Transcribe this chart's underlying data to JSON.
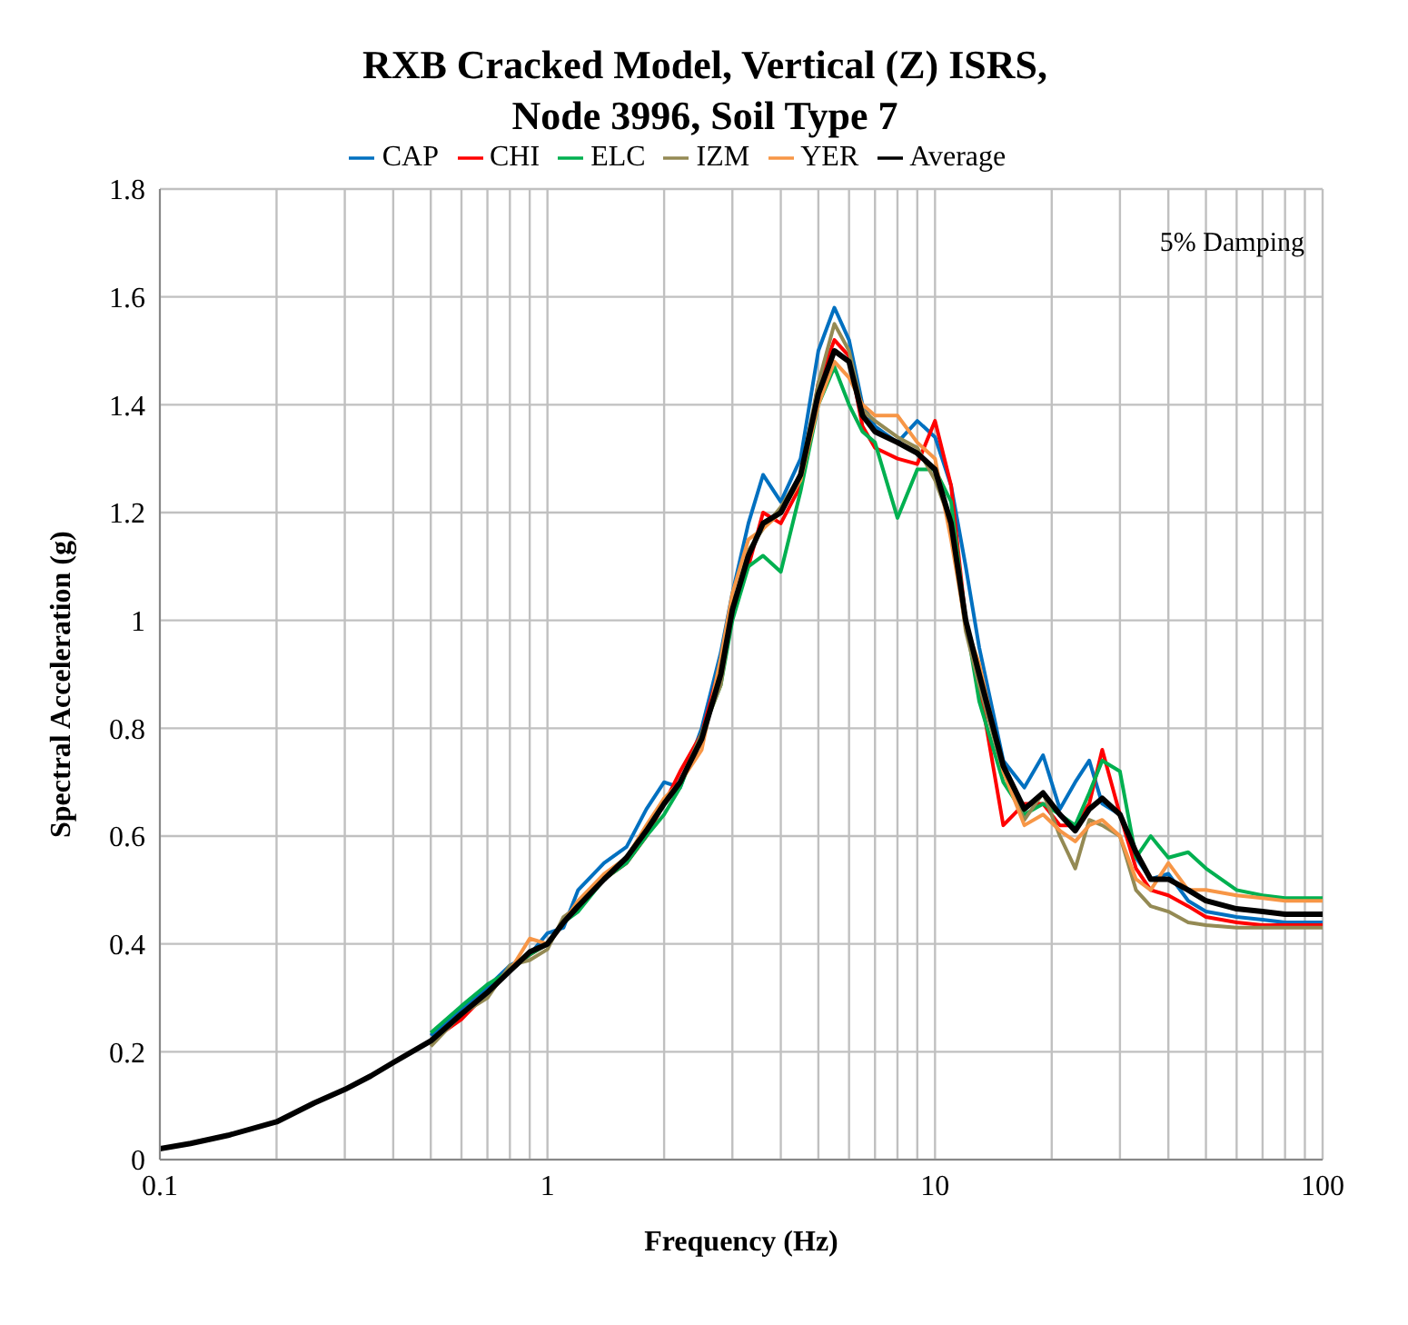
{
  "chart_data": {
    "type": "line",
    "title": "RXB Cracked Model, Vertical (Z) ISRS,\nNode 3996, Soil Type 7",
    "xlabel": "Frequency (Hz)",
    "ylabel": "Spectral Acceleration (g)",
    "annotations": [
      "5% Damping"
    ],
    "log": "x",
    "grid": true,
    "legend": "top",
    "marker": "none",
    "line_style": "solid",
    "x": [
      0.1,
      0.12,
      0.15,
      0.2,
      0.25,
      0.3,
      0.35,
      0.4,
      0.5,
      0.6,
      0.7,
      0.8,
      0.9,
      1,
      1.1,
      1.2,
      1.4,
      1.6,
      1.8,
      2,
      2.2,
      2.5,
      2.8,
      3,
      3.3,
      3.6,
      4,
      4.5,
      5,
      5.5,
      6,
      6.5,
      7,
      8,
      9,
      10,
      11,
      12,
      13,
      15,
      17,
      19,
      21,
      23,
      25,
      27,
      30,
      33,
      36,
      40,
      45,
      50,
      60,
      70,
      80,
      100
    ],
    "xlim": [
      0.1,
      100
    ],
    "xticks": [
      0.1,
      {
        "value": 0.2,
        "label": null
      },
      {
        "value": 0.3,
        "label": null
      },
      {
        "value": 0.4,
        "label": null
      },
      {
        "value": 0.5,
        "label": null
      },
      {
        "value": 0.6,
        "label": null
      },
      {
        "value": 0.7,
        "label": null
      },
      {
        "value": 0.8,
        "label": null
      },
      {
        "value": 0.9,
        "label": null
      },
      1,
      {
        "value": 2,
        "label": null
      },
      {
        "value": 3,
        "label": null
      },
      {
        "value": 4,
        "label": null
      },
      {
        "value": 5,
        "label": null
      },
      {
        "value": 6,
        "label": null
      },
      {
        "value": 7,
        "label": null
      },
      {
        "value": 8,
        "label": null
      },
      {
        "value": 9,
        "label": null
      },
      10,
      {
        "value": 20,
        "label": null
      },
      {
        "value": 30,
        "label": null
      },
      {
        "value": 40,
        "label": null
      },
      {
        "value": 50,
        "label": null
      },
      {
        "value": 60,
        "label": null
      },
      {
        "value": 70,
        "label": null
      },
      {
        "value": 80,
        "label": null
      },
      {
        "value": 90,
        "label": null
      },
      100
    ],
    "ylim": [
      0,
      1.8
    ],
    "yticks": [
      0,
      0.2,
      0.4,
      0.6,
      0.8,
      1,
      1.2,
      1.4,
      1.6,
      1.8
    ],
    "series": [
      {
        "name": "CAP",
        "color": "#0070c0",
        "values": [
          null,
          null,
          null,
          null,
          null,
          null,
          null,
          null,
          0.23,
          0.28,
          0.32,
          0.36,
          0.38,
          0.42,
          0.43,
          0.5,
          0.55,
          0.58,
          0.65,
          0.7,
          0.69,
          0.8,
          0.94,
          1.05,
          1.18,
          1.27,
          1.22,
          1.3,
          1.5,
          1.58,
          1.52,
          1.4,
          1.36,
          1.33,
          1.37,
          1.34,
          1.25,
          1.1,
          0.95,
          0.74,
          0.69,
          0.75,
          0.65,
          0.7,
          0.74,
          0.66,
          0.64,
          0.56,
          0.52,
          0.53,
          0.48,
          0.46,
          0.45,
          0.445,
          0.44,
          0.44
        ]
      },
      {
        "name": "CHI",
        "color": "#ff0000",
        "values": [
          null,
          null,
          null,
          null,
          null,
          null,
          null,
          null,
          0.22,
          0.26,
          0.31,
          0.35,
          0.38,
          0.4,
          0.44,
          0.47,
          0.52,
          0.55,
          0.6,
          0.66,
          0.72,
          0.79,
          0.92,
          1.03,
          1.1,
          1.2,
          1.18,
          1.25,
          1.44,
          1.52,
          1.49,
          1.36,
          1.32,
          1.3,
          1.29,
          1.37,
          1.25,
          1.0,
          0.88,
          0.62,
          0.66,
          0.66,
          0.62,
          0.62,
          0.66,
          0.76,
          0.64,
          0.54,
          0.5,
          0.49,
          0.47,
          0.45,
          0.44,
          0.435,
          0.435,
          0.435
        ]
      },
      {
        "name": "ELC",
        "color": "#00b050",
        "values": [
          null,
          null,
          null,
          null,
          null,
          null,
          null,
          null,
          0.235,
          0.285,
          0.325,
          0.35,
          0.38,
          0.4,
          0.44,
          0.46,
          0.52,
          0.55,
          0.6,
          0.64,
          0.69,
          0.79,
          0.88,
          1.0,
          1.1,
          1.12,
          1.09,
          1.24,
          1.4,
          1.47,
          1.4,
          1.35,
          1.33,
          1.19,
          1.28,
          1.28,
          1.22,
          1.0,
          0.85,
          0.7,
          0.64,
          0.66,
          0.64,
          0.62,
          0.68,
          0.74,
          0.72,
          0.56,
          0.6,
          0.56,
          0.57,
          0.54,
          0.5,
          0.49,
          0.485,
          0.485
        ]
      },
      {
        "name": "IZM",
        "color": "#948a54",
        "values": [
          null,
          null,
          null,
          null,
          null,
          null,
          null,
          null,
          0.21,
          0.27,
          0.3,
          0.36,
          0.37,
          0.39,
          0.45,
          0.47,
          0.52,
          0.56,
          0.61,
          0.66,
          0.7,
          0.79,
          0.88,
          1.02,
          1.13,
          1.17,
          1.21,
          1.27,
          1.44,
          1.55,
          1.5,
          1.39,
          1.37,
          1.34,
          1.32,
          1.26,
          1.18,
          0.98,
          0.88,
          0.72,
          0.63,
          0.68,
          0.6,
          0.54,
          0.63,
          0.62,
          0.6,
          0.5,
          0.47,
          0.46,
          0.44,
          0.435,
          0.43,
          0.43,
          0.43,
          0.43
        ]
      },
      {
        "name": "YER",
        "color": "#f79646",
        "values": [
          null,
          null,
          null,
          null,
          null,
          null,
          null,
          null,
          0.22,
          0.27,
          0.31,
          0.35,
          0.41,
          0.4,
          0.44,
          0.48,
          0.53,
          0.56,
          0.62,
          0.67,
          0.7,
          0.76,
          0.93,
          1.05,
          1.15,
          1.17,
          1.2,
          1.26,
          1.4,
          1.48,
          1.45,
          1.4,
          1.38,
          1.38,
          1.33,
          1.3,
          1.15,
          0.99,
          0.92,
          0.72,
          0.62,
          0.64,
          0.61,
          0.59,
          0.62,
          0.63,
          0.6,
          0.52,
          0.5,
          0.55,
          0.5,
          0.5,
          0.49,
          0.485,
          0.48,
          0.48
        ]
      },
      {
        "name": "Average",
        "color": "#000000",
        "values": [
          0.02,
          0.03,
          0.045,
          0.07,
          0.105,
          0.13,
          0.155,
          0.18,
          0.22,
          0.27,
          0.31,
          0.35,
          0.385,
          0.4,
          0.44,
          0.47,
          0.52,
          0.56,
          0.61,
          0.66,
          0.7,
          0.78,
          0.9,
          1.02,
          1.12,
          1.18,
          1.2,
          1.27,
          1.42,
          1.5,
          1.48,
          1.38,
          1.35,
          1.33,
          1.31,
          1.28,
          1.18,
          1.0,
          0.9,
          0.73,
          0.65,
          0.68,
          0.64,
          0.61,
          0.65,
          0.67,
          0.64,
          0.57,
          0.52,
          0.52,
          0.5,
          0.48,
          0.465,
          0.46,
          0.455,
          0.455
        ]
      }
    ]
  }
}
